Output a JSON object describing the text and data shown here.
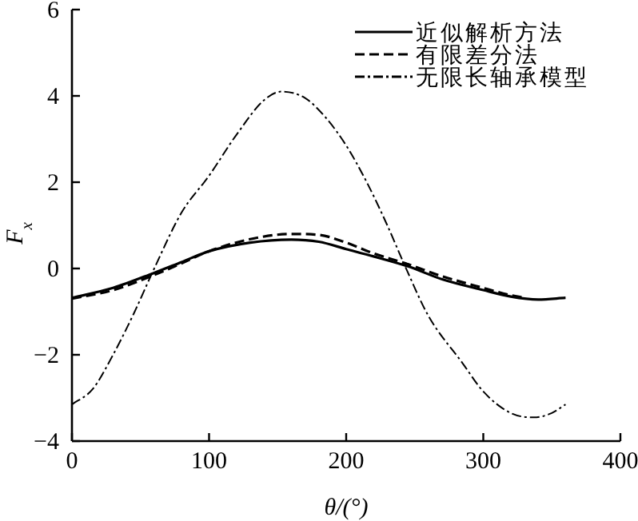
{
  "chart_data": {
    "type": "line",
    "xlabel": "θ/(°)",
    "ylabel": "F$_{x}$",
    "xlim": [
      0,
      400
    ],
    "ylim": [
      -4,
      6
    ],
    "xticks": [
      0,
      100,
      200,
      300,
      400
    ],
    "yticks": [
      -4,
      -2,
      0,
      2,
      4,
      6
    ],
    "grid": false,
    "legend": "top right",
    "marker": "none",
    "series": [
      {
        "name": "近似解析方法",
        "color": "#000000",
        "line_style": "solid",
        "x": [
          0,
          30,
          60,
          80,
          100,
          130,
          160,
          180,
          200,
          220,
          245,
          270,
          300,
          320,
          340,
          360
        ],
        "values": [
          -0.68,
          -0.45,
          -0.1,
          0.15,
          0.4,
          0.6,
          0.67,
          0.62,
          0.45,
          0.28,
          0.05,
          -0.25,
          -0.5,
          -0.65,
          -0.72,
          -0.68
        ]
      },
      {
        "name": "有限差分法",
        "color": "#000000",
        "line_style": "dashed",
        "x": [
          0,
          30,
          60,
          80,
          100,
          130,
          160,
          180,
          200,
          220,
          245,
          270,
          300,
          320,
          330
        ],
        "values": [
          -0.7,
          -0.5,
          -0.15,
          0.12,
          0.4,
          0.68,
          0.8,
          0.78,
          0.6,
          0.35,
          0.1,
          -0.18,
          -0.45,
          -0.62,
          -0.68
        ]
      },
      {
        "name": "无限长轴承模型",
        "color": "#000000",
        "line_style": "dashdot",
        "x": [
          0,
          15,
          30,
          45,
          60,
          80,
          100,
          120,
          140,
          153,
          170,
          185,
          200,
          215,
          230,
          243,
          260,
          285,
          300,
          320,
          337,
          350,
          360
        ],
        "values": [
          -3.15,
          -2.8,
          -2.0,
          -1.05,
          0,
          1.3,
          2.15,
          3.1,
          3.9,
          4.1,
          3.95,
          3.5,
          2.85,
          2.0,
          1.0,
          0.05,
          -1.1,
          -2.2,
          -2.85,
          -3.35,
          -3.45,
          -3.35,
          -3.15
        ]
      }
    ]
  }
}
